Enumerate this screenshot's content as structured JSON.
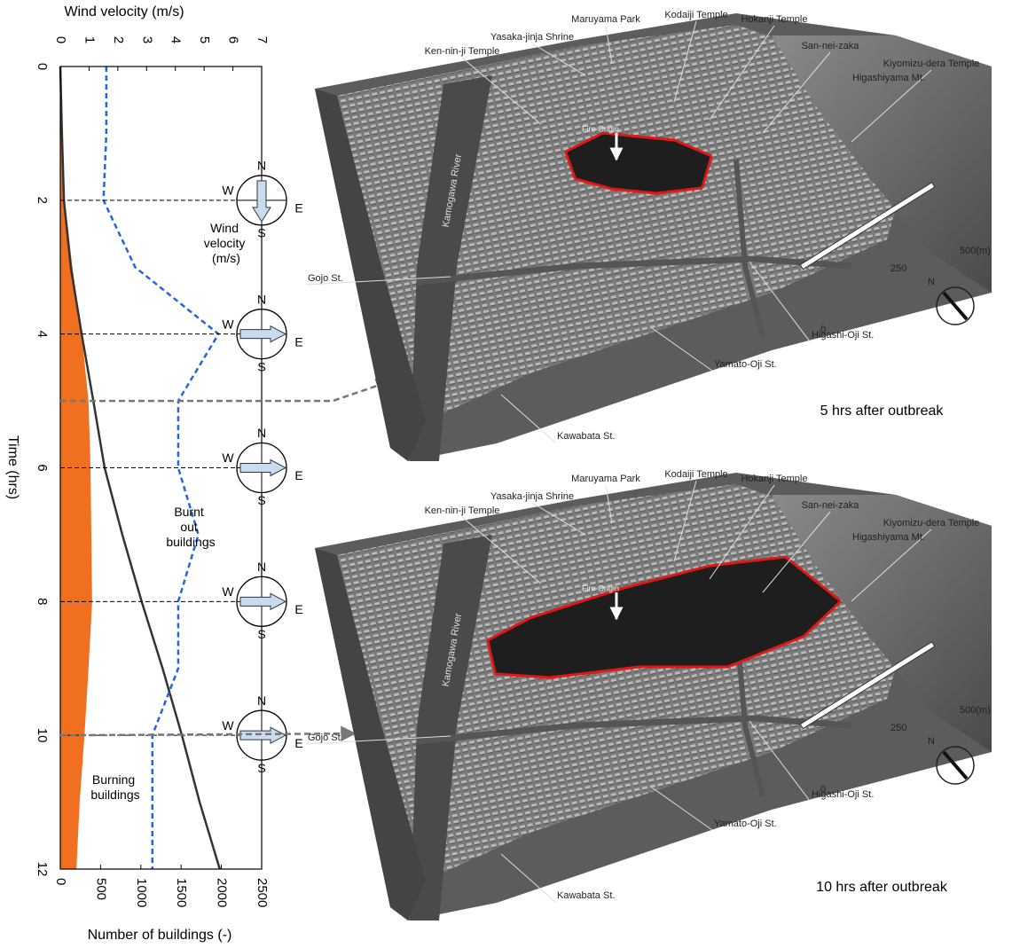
{
  "chart_data": {
    "type": "line",
    "x_label": "Time (hrs)",
    "x": [
      0,
      1,
      2,
      3,
      4,
      5,
      6,
      7,
      8,
      9,
      10,
      11,
      12
    ],
    "xlim": [
      0,
      12
    ],
    "xticks": [
      0,
      2,
      4,
      6,
      8,
      10,
      12
    ],
    "y_label": "Number of buildings (-)",
    "ylim": [
      0,
      2500
    ],
    "yticks": [
      0,
      500,
      1000,
      1500,
      2000,
      2500
    ],
    "y2_label": "Wind velocity (m/s)",
    "y2lim": [
      0,
      7
    ],
    "y2ticks": [
      0,
      1,
      2,
      3,
      4,
      5,
      6,
      7
    ],
    "series": [
      {
        "name": "Burning buildings",
        "type": "area",
        "color": "#f07020",
        "values": [
          0,
          20,
          55,
          150,
          265,
          350,
          375,
          385,
          395,
          350,
          300,
          240,
          200
        ]
      },
      {
        "name": "Burnt out buildings",
        "type": "line",
        "color": "#333333",
        "values": [
          0,
          20,
          45,
          130,
          265,
          410,
          550,
          770,
          1010,
          1270,
          1510,
          1730,
          1980
        ]
      },
      {
        "name": "Wind velocity (m/s)",
        "type": "line",
        "color": "#2266dd",
        "dashed": true,
        "axis": "y2",
        "values": [
          1.6,
          1.6,
          1.5,
          2.6,
          5.5,
          4.1,
          4.1,
          4.8,
          4.1,
          4.1,
          3.2,
          3.2,
          3.2
        ]
      }
    ],
    "compass_letters": {
      "north": "N",
      "west": "W",
      "east": "E",
      "south": "S"
    }
  },
  "maps": [
    {
      "caption": "5 hrs after outbreak"
    },
    {
      "caption": "10 hrs after outbreak"
    }
  ],
  "map_labels": [
    "Maruyama Park",
    "Kodaiji Temple",
    "Hokanji Temple",
    "Yasaka-jinja Shrine",
    "San-nei-zaka",
    "Ken-nin-ji Temple",
    "Kiyomizu-dera Temple",
    "Higashiyama Mt.",
    "Fire Origin",
    "Kamogawa River",
    "Gojo St.",
    "Higashi-Oji St.",
    "Yamato-Oji St.",
    "Kawabata St.",
    "500(m)",
    "250",
    "0",
    "N"
  ]
}
